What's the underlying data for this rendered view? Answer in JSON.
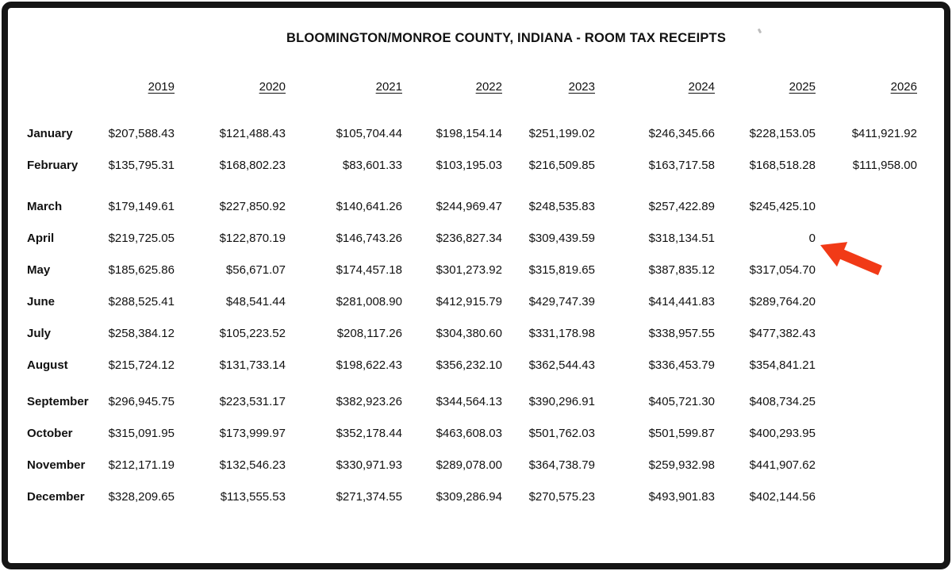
{
  "title": "BLOOMINGTON/MONROE COUNTY, INDIANA - ROOM TAX RECEIPTS",
  "colors": {
    "frame": "#151515",
    "text": "#111111",
    "arrow": "#f13a17"
  },
  "annotation": {
    "type": "red-arrow",
    "points_at": "2025 April value"
  },
  "table": {
    "years": [
      "2019",
      "2020",
      "2021",
      "2022",
      "2023",
      "2024",
      "2025",
      "2026"
    ],
    "rows": [
      {
        "month": "January",
        "values": [
          "$207,588.43",
          "$121,488.43",
          "$105,704.44",
          "$198,154.14",
          "$251,199.02",
          "$246,345.66",
          "$228,153.05",
          "$411,921.92"
        ]
      },
      {
        "month": "February",
        "values": [
          "$135,795.31",
          "$168,802.23",
          "$83,601.33",
          "$103,195.03",
          "$216,509.85",
          "$163,717.58",
          "$168,518.28",
          "$111,958.00"
        ]
      },
      {
        "month": "March",
        "values": [
          "$179,149.61",
          "$227,850.92",
          "$140,641.26",
          "$244,969.47",
          "$248,535.83",
          "$257,422.89",
          "$245,425.10",
          ""
        ]
      },
      {
        "month": "April",
        "values": [
          "$219,725.05",
          "$122,870.19",
          "$146,743.26",
          "$236,827.34",
          "$309,439.59",
          "$318,134.51",
          "0",
          ""
        ]
      },
      {
        "month": "May",
        "values": [
          "$185,625.86",
          "$56,671.07",
          "$174,457.18",
          "$301,273.92",
          "$315,819.65",
          "$387,835.12",
          "$317,054.70",
          ""
        ]
      },
      {
        "month": "June",
        "values": [
          "$288,525.41",
          "$48,541.44",
          "$281,008.90",
          "$412,915.79",
          "$429,747.39",
          "$414,441.83",
          "$289,764.20",
          ""
        ]
      },
      {
        "month": "July",
        "values": [
          "$258,384.12",
          "$105,223.52",
          "$208,117.26",
          "$304,380.60",
          "$331,178.98",
          "$338,957.55",
          "$477,382.43",
          ""
        ]
      },
      {
        "month": "August",
        "values": [
          "$215,724.12",
          "$131,733.14",
          "$198,622.43",
          "$356,232.10",
          "$362,544.43",
          "$336,453.79",
          "$354,841.21",
          ""
        ]
      },
      {
        "month": "September",
        "values": [
          "$296,945.75",
          "$223,531.17",
          "$382,923.26",
          "$344,564.13",
          "$390,296.91",
          "$405,721.30",
          "$408,734.25",
          ""
        ]
      },
      {
        "month": "October",
        "values": [
          "$315,091.95",
          "$173,999.97",
          "$352,178.44",
          "$463,608.03",
          "$501,762.03",
          "$501,599.87",
          "$400,293.95",
          ""
        ]
      },
      {
        "month": "November",
        "values": [
          "$212,171.19",
          "$132,546.23",
          "$330,971.93",
          "$289,078.00",
          "$364,738.79",
          "$259,932.98",
          "$441,907.62",
          ""
        ]
      },
      {
        "month": "December",
        "values": [
          "$328,209.65",
          "$113,555.53",
          "$271,374.55",
          "$309,286.94",
          "$270,575.23",
          "$493,901.83",
          "$402,144.56",
          ""
        ]
      }
    ]
  }
}
